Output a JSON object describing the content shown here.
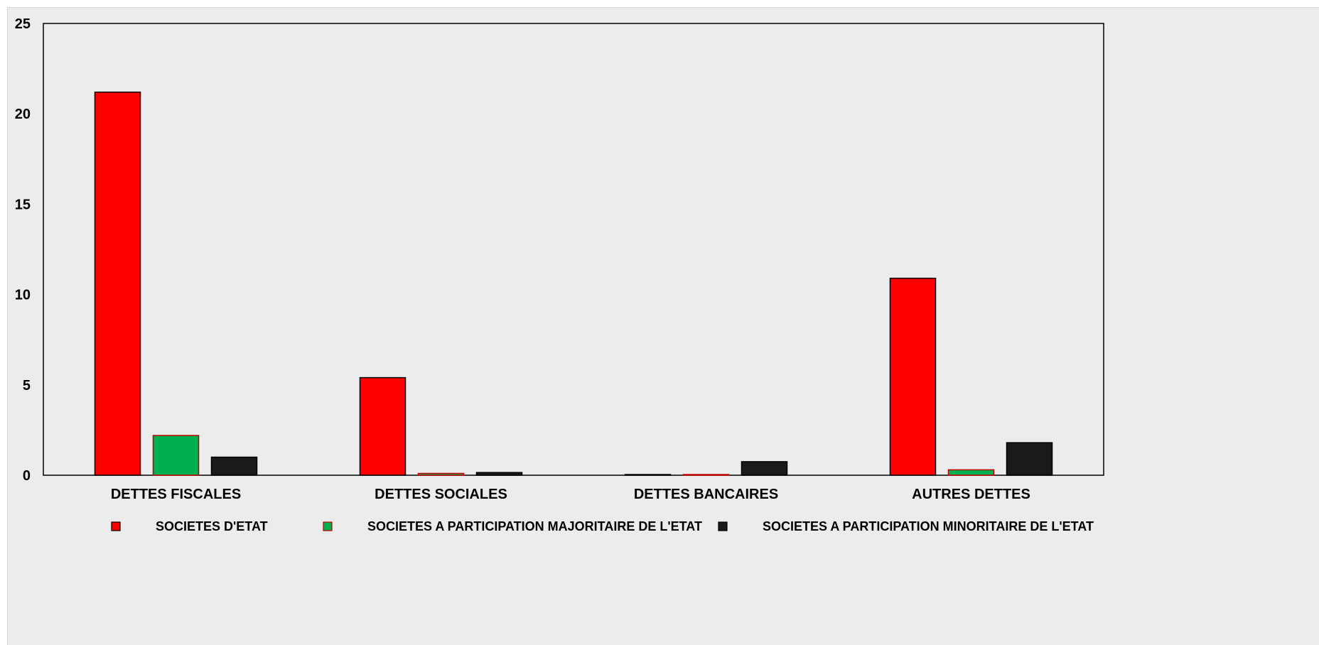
{
  "chart_data": {
    "type": "bar",
    "title": "",
    "xlabel": "",
    "ylabel": "",
    "ylim": [
      0,
      25
    ],
    "yticks": [
      "0",
      "5",
      "10",
      "15",
      "20",
      "25"
    ],
    "categories": [
      "DETTES FISCALES",
      "DETTES SOCIALES",
      "DETTES BANCAIRES",
      "AUTRES DETTES"
    ],
    "series": [
      {
        "name": "SOCIETES D'ETAT",
        "color": "#ff0000",
        "stroke": "#000000",
        "values": [
          21.2,
          5.4,
          0.02,
          10.9
        ]
      },
      {
        "name": "SOCIETES A PARTICIPATION MAJORITAIRE DE L'ETAT",
        "color": "#00b050",
        "stroke": "#c00000",
        "values": [
          2.2,
          0.1,
          0.02,
          0.3
        ]
      },
      {
        "name": "SOCIETES A PARTICIPATION MINORITAIRE DE L'ETAT",
        "color": "#1a1a1a",
        "stroke": "#000000",
        "values": [
          1.0,
          0.15,
          0.75,
          1.8
        ]
      }
    ],
    "grid": false,
    "legend_position": "bottom"
  }
}
